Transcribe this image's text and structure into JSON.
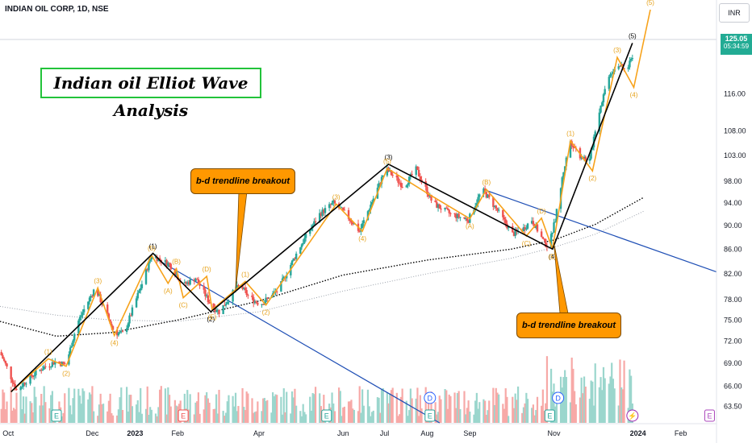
{
  "header": {
    "symbol_line": "INDIAN OIL CORP, 1D, NSE"
  },
  "currency": "INR",
  "last_price": {
    "price": "125.05",
    "countdown": "05:34:59"
  },
  "colors": {
    "up_candle": "#26a69a",
    "down_candle": "#ef5350",
    "wave_major": "#000000",
    "wave_minor": "#f7a21b",
    "trendline": "#1f4fb5",
    "callout": "#ff9800",
    "volume_up": "#9bd6cd",
    "volume_down": "#f7a9a7",
    "price_tag": "#22ab94"
  },
  "chart_data": {
    "type": "candlestick",
    "title": "Indian oil Elliot Wave Analysis",
    "ylim": [
      61.5,
      138
    ],
    "y_scale": "log",
    "y_ticks": [
      "63.50",
      "66.00",
      "69.00",
      "72.00",
      "75.00",
      "78.00",
      "82.00",
      "86.00",
      "90.00",
      "94.00",
      "98.00",
      "103.00",
      "108.00",
      "116.00"
    ],
    "x_ticks": [
      "Oct",
      "Dec",
      "2023",
      "Feb",
      "Apr",
      "Jun",
      "Jul",
      "Aug",
      "Sep",
      "Nov",
      "2024",
      "Feb"
    ],
    "x_tick_dates": [
      "2022-10-01",
      "2022-12-01",
      "2023-01-01",
      "2023-02-01",
      "2023-04-01",
      "2023-06-01",
      "2023-07-01",
      "2023-08-01",
      "2023-09-01",
      "2023-11-01",
      "2024-01-01",
      "2024-02-01"
    ],
    "x_range": [
      "2022-09-25",
      "2024-02-27"
    ],
    "price_path": [
      [
        "2022-09-25",
        70.5
      ],
      [
        "2022-10-07",
        65.5
      ],
      [
        "2022-10-17",
        67.2
      ],
      [
        "2022-10-27",
        68.5
      ],
      [
        "2022-11-04",
        69.2
      ],
      [
        "2022-11-12",
        68.8
      ],
      [
        "2022-11-20",
        74.5
      ],
      [
        "2022-12-03",
        79.8
      ],
      [
        "2022-12-17",
        73.2
      ],
      [
        "2022-12-24",
        73.0
      ],
      [
        "2023-01-07",
        81.0
      ],
      [
        "2023-01-13",
        85.0
      ],
      [
        "2023-01-26",
        83.5
      ],
      [
        "2023-02-05",
        80.2
      ],
      [
        "2023-02-14",
        81.3
      ],
      [
        "2023-02-25",
        77.2
      ],
      [
        "2023-03-03",
        76.2
      ],
      [
        "2023-03-13",
        79.0
      ],
      [
        "2023-03-18",
        80.3
      ],
      [
        "2023-03-25",
        78.3
      ],
      [
        "2023-04-02",
        77.3
      ],
      [
        "2023-04-15",
        79.5
      ],
      [
        "2023-05-01",
        86.5
      ],
      [
        "2023-05-15",
        92.0
      ],
      [
        "2023-05-25",
        94.0
      ],
      [
        "2023-06-03",
        92.0
      ],
      [
        "2023-06-13",
        89.0
      ],
      [
        "2023-06-25",
        96.0
      ],
      [
        "2023-07-02",
        100.5
      ],
      [
        "2023-07-15",
        97.0
      ],
      [
        "2023-07-24",
        100.3
      ],
      [
        "2023-08-05",
        94.0
      ],
      [
        "2023-08-18",
        92.0
      ],
      [
        "2023-08-31",
        91.0
      ],
      [
        "2023-09-10",
        96.5
      ],
      [
        "2023-09-20",
        93.0
      ],
      [
        "2023-10-02",
        88.5
      ],
      [
        "2023-10-10",
        89.5
      ],
      [
        "2023-10-16",
        91.0
      ],
      [
        "2023-10-24",
        87.5
      ],
      [
        "2023-10-28",
        86.2
      ],
      [
        "2023-11-02",
        91.0
      ],
      [
        "2023-11-08",
        100.0
      ],
      [
        "2023-11-13",
        106.0
      ],
      [
        "2023-11-20",
        103.0
      ],
      [
        "2023-11-27",
        102.0
      ],
      [
        "2023-12-02",
        110.0
      ],
      [
        "2023-12-11",
        120.5
      ],
      [
        "2023-12-18",
        123.0
      ],
      [
        "2023-12-23",
        121.0
      ],
      [
        "2023-12-28",
        125.05
      ]
    ],
    "series": [
      {
        "name": "Primary waves (1)-(5)",
        "points": [
          [
            "2022-10-03",
            65.3
          ],
          [
            "2023-01-14",
            85.3
          ],
          [
            "2023-02-25",
            76.2
          ],
          [
            "2023-07-04",
            101.3
          ],
          [
            "2023-10-31",
            86.0
          ],
          [
            "2023-12-28",
            128.0
          ]
        ]
      },
      {
        "name": "Minor waves",
        "points": [
          [
            "2022-10-03",
            65.3
          ],
          [
            "2022-10-30",
            69.6
          ],
          [
            "2022-11-12",
            68.6
          ],
          [
            "2022-12-05",
            79.8
          ],
          [
            "2022-12-17",
            72.8
          ],
          [
            "2023-01-13",
            85.0
          ],
          [
            "2023-01-25",
            80.5
          ],
          [
            "2023-01-31",
            82.8
          ],
          [
            "2023-02-05",
            78.3
          ],
          [
            "2023-02-22",
            81.6
          ],
          [
            "2023-02-26",
            76.5
          ],
          [
            "2023-03-22",
            80.8
          ],
          [
            "2023-04-06",
            77.2
          ],
          [
            "2023-05-27",
            93.8
          ],
          [
            "2023-06-15",
            89.0
          ],
          [
            "2023-07-03",
            100.5
          ],
          [
            "2023-08-03",
            95.5
          ],
          [
            "2023-09-01",
            91.2
          ],
          [
            "2023-09-13",
            96.5
          ],
          [
            "2023-10-12",
            88.2
          ],
          [
            "2023-10-23",
            91.3
          ],
          [
            "2023-10-31",
            86.0
          ],
          [
            "2023-11-13",
            106.0
          ],
          [
            "2023-11-29",
            100.0
          ],
          [
            "2023-12-17",
            124.5
          ],
          [
            "2023-12-29",
            117.5
          ],
          [
            "2024-01-10",
            136.5
          ]
        ]
      },
      {
        "name": "Moving average (black dotted)",
        "points": [
          [
            "2022-09-25",
            74.8
          ],
          [
            "2022-11-05",
            72.7
          ],
          [
            "2022-12-15",
            73.2
          ],
          [
            "2023-02-01",
            75.0
          ],
          [
            "2023-04-01",
            77.8
          ],
          [
            "2023-06-01",
            81.8
          ],
          [
            "2023-08-01",
            84.2
          ],
          [
            "2023-10-01",
            86.0
          ],
          [
            "2023-11-01",
            87.5
          ],
          [
            "2023-12-01",
            90.2
          ],
          [
            "2024-01-05",
            95.0
          ]
        ]
      },
      {
        "name": "Moving average (grey dotted)",
        "points": [
          [
            "2022-09-25",
            77.0
          ],
          [
            "2022-11-05",
            75.7
          ],
          [
            "2022-12-15",
            75.0
          ],
          [
            "2023-02-01",
            74.8
          ],
          [
            "2023-04-01",
            76.2
          ],
          [
            "2023-06-01",
            79.3
          ],
          [
            "2023-08-01",
            82.0
          ],
          [
            "2023-10-01",
            84.5
          ],
          [
            "2023-11-01",
            86.3
          ],
          [
            "2023-12-01",
            88.5
          ],
          [
            "2024-01-05",
            92.5
          ]
        ]
      },
      {
        "name": "Trendline 1",
        "points": [
          [
            "2023-01-17",
            84.3
          ],
          [
            "2023-08-10",
            61.5
          ]
        ]
      },
      {
        "name": "Trendline 2",
        "points": [
          [
            "2023-09-13",
            96.3
          ],
          [
            "2024-02-27",
            82.3
          ]
        ]
      }
    ],
    "wave_labels": [
      {
        "text": "(1)",
        "date": "2023-01-14",
        "price": 85.3,
        "pos": "above",
        "kind": "major"
      },
      {
        "text": "(2)",
        "date": "2023-02-25",
        "price": 76.2,
        "pos": "below",
        "kind": "major"
      },
      {
        "text": "(3)",
        "date": "2023-07-04",
        "price": 101.3,
        "pos": "above",
        "kind": "major"
      },
      {
        "text": "(4)",
        "date": "2023-10-31",
        "price": 86.0,
        "pos": "below",
        "kind": "major"
      },
      {
        "text": "(5)",
        "date": "2023-12-28",
        "price": 128.0,
        "pos": "above",
        "kind": "major"
      },
      {
        "text": "(1)",
        "date": "2022-10-30",
        "price": 69.6,
        "pos": "above",
        "kind": "minor"
      },
      {
        "text": "(2)",
        "date": "2022-11-12",
        "price": 68.6,
        "pos": "below",
        "kind": "minor"
      },
      {
        "text": "(3)",
        "date": "2022-12-05",
        "price": 79.8,
        "pos": "above",
        "kind": "minor"
      },
      {
        "text": "(4)",
        "date": "2022-12-17",
        "price": 72.8,
        "pos": "below",
        "kind": "minor"
      },
      {
        "text": "(5)",
        "date": "2023-01-13",
        "price": 85.0,
        "pos": "above",
        "kind": "minor"
      },
      {
        "text": "(A)",
        "date": "2023-01-25",
        "price": 80.5,
        "pos": "below",
        "kind": "minor"
      },
      {
        "text": "(B)",
        "date": "2023-01-31",
        "price": 82.8,
        "pos": "above",
        "kind": "minor"
      },
      {
        "text": "(C)",
        "date": "2023-02-05",
        "price": 78.3,
        "pos": "below",
        "kind": "minor"
      },
      {
        "text": "(D)",
        "date": "2023-02-22",
        "price": 81.6,
        "pos": "above",
        "kind": "minor"
      },
      {
        "text": "(E)",
        "date": "2023-02-26",
        "price": 76.5,
        "pos": "below",
        "kind": "minor"
      },
      {
        "text": "(1)",
        "date": "2023-03-22",
        "price": 80.8,
        "pos": "above",
        "kind": "minor"
      },
      {
        "text": "(2)",
        "date": "2023-04-06",
        "price": 77.2,
        "pos": "below",
        "kind": "minor"
      },
      {
        "text": "(3)",
        "date": "2023-05-27",
        "price": 93.8,
        "pos": "above",
        "kind": "minor"
      },
      {
        "text": "(4)",
        "date": "2023-06-15",
        "price": 89.0,
        "pos": "below",
        "kind": "minor"
      },
      {
        "text": "(5)",
        "date": "2023-07-03",
        "price": 100.5,
        "pos": "above",
        "kind": "minor"
      },
      {
        "text": "(A)",
        "date": "2023-09-01",
        "price": 91.2,
        "pos": "below",
        "kind": "minor"
      },
      {
        "text": "(B)",
        "date": "2023-09-13",
        "price": 96.5,
        "pos": "above",
        "kind": "minor"
      },
      {
        "text": "(C)",
        "date": "2023-10-12",
        "price": 88.2,
        "pos": "below",
        "kind": "minor"
      },
      {
        "text": "(D)",
        "date": "2023-10-23",
        "price": 91.3,
        "pos": "above",
        "kind": "minor"
      },
      {
        "text": "(E)",
        "date": "2023-10-31",
        "price": 86.0,
        "pos": "below",
        "kind": "minor"
      },
      {
        "text": "(1)",
        "date": "2023-11-13",
        "price": 106.0,
        "pos": "above",
        "kind": "minor"
      },
      {
        "text": "(2)",
        "date": "2023-11-29",
        "price": 100.0,
        "pos": "below",
        "kind": "minor"
      },
      {
        "text": "(3)",
        "date": "2023-12-17",
        "price": 124.5,
        "pos": "above",
        "kind": "minor"
      },
      {
        "text": "(4)",
        "date": "2023-12-29",
        "price": 117.5,
        "pos": "below",
        "kind": "minor"
      },
      {
        "text": "(5)",
        "date": "2024-01-10",
        "price": 136.5,
        "pos": "above",
        "kind": "minor"
      }
    ],
    "callouts": [
      {
        "text": "b-d trendline breakout",
        "date": "2023-03-15",
        "price": 79.5
      },
      {
        "text": "b-d trendline breakout",
        "date": "2023-11-01",
        "price": 87.0
      }
    ],
    "event_markers": [
      {
        "letter": "E",
        "date": "2022-11-05",
        "style": "earnings"
      },
      {
        "letter": "E",
        "date": "2023-02-05",
        "style": "earnings-red"
      },
      {
        "letter": "E",
        "date": "2023-05-20",
        "style": "earnings"
      },
      {
        "letter": "D",
        "date": "2023-08-03",
        "style": "dividend"
      },
      {
        "letter": "E",
        "date": "2023-08-03",
        "style": "earnings"
      },
      {
        "letter": "E",
        "date": "2023-10-29",
        "style": "earnings"
      },
      {
        "letter": "D",
        "date": "2023-11-04",
        "style": "dividend"
      },
      {
        "letter": "⚡",
        "date": "2023-12-28",
        "style": "split"
      },
      {
        "letter": "E",
        "date": "2024-02-22",
        "style": "earnings-purple"
      }
    ],
    "grid": false,
    "legend": "none"
  }
}
